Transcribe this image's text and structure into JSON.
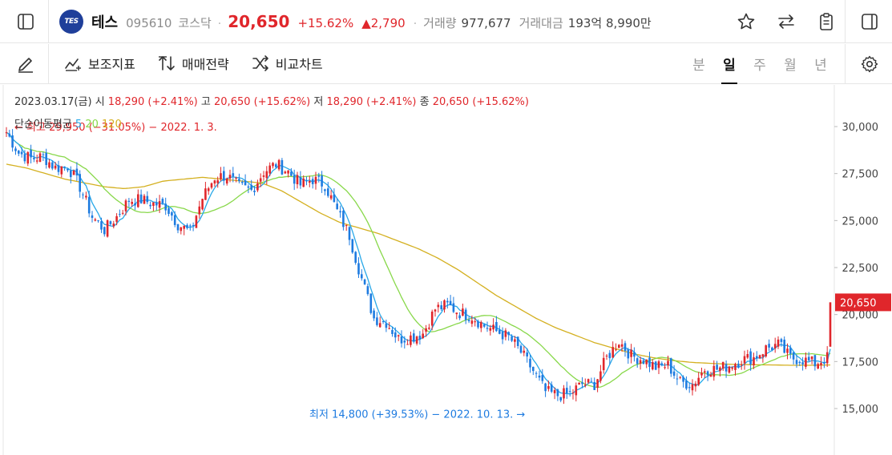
{
  "header": {
    "logo_text": "TES",
    "name": "테스",
    "code": "095610",
    "market": "코스닥",
    "separator": "·",
    "price": "20,650",
    "change_pct": "+15.62%",
    "change_abs": "▲2,790",
    "volume_label": "거래량",
    "volume_value": "977,677",
    "turnover_label": "거래대금",
    "turnover_value": "193억 8,990만"
  },
  "toolbar": {
    "indicators": "보조지표",
    "strategy": "매매전략",
    "compare": "비교차트",
    "periods": [
      "분",
      "일",
      "주",
      "월",
      "년"
    ],
    "active_period": "일"
  },
  "ohlc": {
    "date": "2023.03.17(금)",
    "open_label": "시",
    "open": "18,290 (+2.41%)",
    "high_label": "고",
    "high": "20,650 (+15.62%)",
    "low_label": "저",
    "low": "18,290 (+2.41%)",
    "close_label": "종",
    "close": "20,650 (+15.62%)"
  },
  "ma_legend": {
    "label": "단순이동평균",
    "p5": "5",
    "p20": "20",
    "p120": "120"
  },
  "colors": {
    "up": "#e0262b",
    "down": "#1e7be0",
    "ma5": "#29a8e8",
    "ma20": "#88d84a",
    "ma120": "#d4b020",
    "current_price_bg": "#e0262b"
  },
  "chart_data": {
    "type": "candlestick",
    "ylim": [
      13000,
      31500
    ],
    "yticks": [
      15000,
      17500,
      20000,
      22500,
      25000,
      27500,
      30000
    ],
    "ytick_labels": [
      "15,000",
      "17,500",
      "20,000",
      "22,500",
      "25,000",
      "27,500",
      "30,000"
    ],
    "current_price": 20650,
    "current_price_label": "20,650",
    "high_annotation": "최고 29,950 (−31.05%) − 2022. 1. 3.",
    "low_annotation": "최저 14,800 (+39.53%) − 2022. 10. 13.",
    "close_series": [
      29700,
      28600,
      28300,
      28400,
      27800,
      27900,
      26800,
      25200,
      24500,
      25200,
      26100,
      26100,
      25900,
      25800,
      24800,
      24400,
      26200,
      27300,
      27400,
      26800,
      26600,
      27600,
      28000,
      27600,
      26900,
      27200,
      26900,
      25500,
      24200,
      21900,
      19800,
      19600,
      18700,
      18800,
      19000,
      20300,
      20500,
      20100,
      19900,
      19400,
      19100,
      18800,
      18000,
      17000,
      15900,
      15700,
      15800,
      16300,
      16300,
      17700,
      18600,
      17800,
      17600,
      17200,
      17300,
      16400,
      16300,
      17100,
      17100,
      17300,
      17600,
      17700,
      18200,
      18400,
      17700,
      17600,
      17400,
      17700,
      20650
    ],
    "ma120_series": [
      28000,
      27800,
      27500,
      27200,
      27000,
      26800,
      26700,
      26800,
      27100,
      27200,
      27300,
      27200,
      27100,
      27000,
      26600,
      26000,
      25400,
      24900,
      24600,
      24300,
      23900,
      23500,
      23000,
      22400,
      21700,
      21000,
      20400,
      19800,
      19300,
      18900,
      18500,
      18200,
      17900,
      17700,
      17550,
      17450,
      17400,
      17350,
      17330,
      17320,
      17300,
      17300,
      17320
    ]
  }
}
